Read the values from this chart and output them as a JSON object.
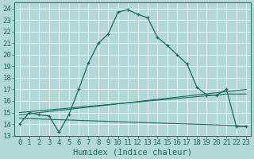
{
  "xlabel": "Humidex (Indice chaleur)",
  "background_color": "#b2d8d8",
  "grid_color": "#ffffff",
  "line_color": "#1a6b5e",
  "xlim": [
    -0.5,
    23.5
  ],
  "ylim": [
    13,
    24.5
  ],
  "yticks": [
    13,
    14,
    15,
    16,
    17,
    18,
    19,
    20,
    21,
    22,
    23,
    24
  ],
  "xticks": [
    0,
    1,
    2,
    3,
    4,
    5,
    6,
    7,
    8,
    9,
    10,
    11,
    12,
    13,
    14,
    15,
    16,
    17,
    18,
    19,
    20,
    21,
    22,
    23
  ],
  "curve1_x": [
    0,
    1,
    2,
    3,
    4,
    5,
    6,
    7,
    8,
    9,
    10,
    11,
    12,
    13,
    14,
    15,
    16,
    17,
    18,
    19,
    20,
    21,
    22,
    23
  ],
  "curve1_y": [
    14.0,
    15.0,
    14.8,
    14.7,
    13.3,
    14.8,
    17.0,
    19.3,
    21.0,
    21.8,
    23.7,
    23.9,
    23.5,
    23.2,
    21.5,
    20.8,
    20.0,
    19.2,
    17.2,
    16.5,
    16.5,
    17.0,
    13.8,
    13.8
  ],
  "trend1_x": [
    0,
    23
  ],
  "trend1_y": [
    14.8,
    17.0
  ],
  "trend2_x": [
    0,
    21,
    23
  ],
  "trend2_y": [
    15.0,
    16.6,
    16.6
  ],
  "trend3_x": [
    0,
    10,
    21,
    23
  ],
  "trend3_y": [
    14.5,
    14.2,
    13.9,
    13.8
  ],
  "tick_fontsize": 6.5,
  "label_fontsize": 7.5
}
